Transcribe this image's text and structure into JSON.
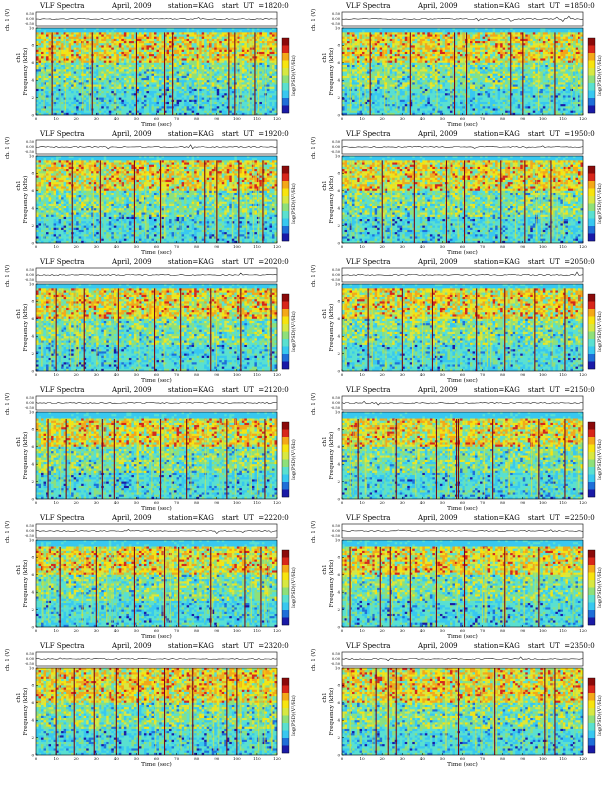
{
  "chart_data": [
    {
      "type": "heatmap",
      "title": "VLF Spectra",
      "month": "April, 2009",
      "station": "station=KAG",
      "start": "start  UT  =1820:0",
      "xlabel": "Time  (sec)",
      "ylabel_top": "ch. 1 (V)",
      "ylabel_bottom": "Frequency (kHz)",
      "ylabel_bottom_prefix": "ch1",
      "colorbar_label": "log(PSD)(V²/Hz)",
      "top_ticks": [
        "0.50",
        "0.00",
        "-0.50"
      ],
      "yticks": [
        "0",
        "2",
        "4",
        "6",
        "8",
        "10"
      ],
      "xticks": [
        "0",
        "10",
        "20",
        "30",
        "40",
        "50",
        "60",
        "70",
        "80",
        "90",
        "100",
        "110",
        "120"
      ],
      "xlim": [
        0,
        120
      ],
      "ylim": [
        0,
        10
      ],
      "band_top_khz": 9.5,
      "dark_lines_sec": [
        8,
        28,
        50,
        64,
        68,
        96,
        99,
        109
      ]
    },
    {
      "type": "heatmap",
      "title": "VLF Spectra",
      "month": "April, 2009",
      "station": "station=KAG",
      "start": "start  UT  =1850:0",
      "xlabel": "Time  (sec)",
      "ylabel_top": "ch. 1 (V)",
      "ylabel_bottom": "Frequency (kHz)",
      "ylabel_bottom_prefix": "ch1",
      "colorbar_label": "log(PSD)(V²/Hz)",
      "top_ticks": [
        "0.50",
        "0.00",
        "-0.50"
      ],
      "yticks": [
        "0",
        "2",
        "4",
        "6",
        "8",
        "10"
      ],
      "xticks": [
        "0",
        "10",
        "20",
        "30",
        "40",
        "50",
        "60",
        "70",
        "80",
        "90",
        "100",
        "110",
        "120"
      ],
      "xlim": [
        0,
        120
      ],
      "ylim": [
        0,
        10
      ],
      "band_top_khz": 9.5,
      "dark_lines_sec": [
        14,
        34,
        56,
        62,
        84,
        90,
        106
      ]
    },
    {
      "type": "heatmap",
      "title": "VLF Spectra",
      "month": "April, 2009",
      "station": "station=KAG",
      "start": "start  UT  =1920:0",
      "xlabel": "Time  (sec)",
      "ylabel_top": "ch. 1 (V)",
      "ylabel_bottom": "Frequency (kHz)",
      "ylabel_bottom_prefix": "ch1",
      "colorbar_label": "log(PSD)(V²/Hz)",
      "top_ticks": [
        "0.50",
        "0.00",
        "-0.50"
      ],
      "yticks": [
        "0",
        "2",
        "4",
        "6",
        "8",
        "10"
      ],
      "xticks": [
        "0",
        "10",
        "20",
        "30",
        "40",
        "50",
        "60",
        "70",
        "80",
        "90",
        "100",
        "110",
        "120"
      ],
      "xlim": [
        0,
        120
      ],
      "ylim": [
        0,
        10
      ],
      "band_top_khz": 9.5,
      "dark_lines_sec": [
        18,
        32,
        49,
        62,
        84,
        90,
        101,
        113
      ]
    },
    {
      "type": "heatmap",
      "title": "VLF Spectra",
      "month": "April, 2009",
      "station": "station=KAG",
      "start": "start  UT  =1950:0",
      "xlabel": "Time  (sec)",
      "ylabel_top": "ch. 1 (V)",
      "ylabel_bottom": "Frequency (kHz)",
      "ylabel_bottom_prefix": "ch1",
      "colorbar_label": "log(PSD)(V²/Hz)",
      "top_ticks": [
        "0.50",
        "0.00",
        "-0.50"
      ],
      "yticks": [
        "0",
        "2",
        "4",
        "6",
        "8",
        "10"
      ],
      "xticks": [
        "0",
        "10",
        "20",
        "30",
        "40",
        "50",
        "60",
        "70",
        "80",
        "90",
        "100",
        "110",
        "120"
      ],
      "xlim": [
        0,
        120
      ],
      "ylim": [
        0,
        10
      ],
      "band_top_khz": 9.5,
      "dark_lines_sec": [
        20,
        36,
        52,
        61,
        79,
        91,
        104
      ]
    },
    {
      "type": "heatmap",
      "title": "VLF Spectra",
      "month": "April, 2009",
      "station": "station=KAG",
      "start": "start  UT  =2020:0",
      "xlabel": "Time  (sec)",
      "ylabel_top": "ch. 1 (V)",
      "ylabel_bottom": "Frequency (kHz)",
      "ylabel_bottom_prefix": "ch1",
      "colorbar_label": "log(PSD)(V²/Hz)",
      "top_ticks": [
        "0.50",
        "0.00",
        "-0.50"
      ],
      "yticks": [
        "0",
        "2",
        "4",
        "6",
        "8",
        "10"
      ],
      "xticks": [
        "0",
        "10",
        "20",
        "30",
        "40",
        "50",
        "60",
        "70",
        "80",
        "90",
        "100",
        "110",
        "120"
      ],
      "xlim": [
        0,
        120
      ],
      "ylim": [
        0,
        10
      ],
      "band_top_khz": 9.5,
      "dark_lines_sec": [
        10,
        24,
        41,
        59,
        72,
        87,
        102,
        117
      ]
    },
    {
      "type": "heatmap",
      "title": "VLF Spectra",
      "month": "April, 2009",
      "station": "station=KAG",
      "start": "start  UT  =2050:0",
      "xlabel": "Time  (sec)",
      "ylabel_top": "ch. 1 (V)",
      "ylabel_bottom": "Frequency (kHz)",
      "ylabel_bottom_prefix": "ch1",
      "colorbar_label": "log(PSD)(V²/Hz)",
      "top_ticks": [
        "0.50",
        "0.00",
        "-0.50"
      ],
      "yticks": [
        "0",
        "2",
        "4",
        "6",
        "8",
        "10"
      ],
      "xticks": [
        "0",
        "10",
        "20",
        "30",
        "40",
        "50",
        "60",
        "70",
        "80",
        "90",
        "100",
        "110",
        "120"
      ],
      "xlim": [
        0,
        120
      ],
      "ylim": [
        0,
        10
      ],
      "band_top_khz": 9.5,
      "dark_lines_sec": [
        13,
        30,
        45,
        67,
        81,
        96,
        111
      ]
    },
    {
      "type": "heatmap",
      "title": "VLF Spectra",
      "month": "April, 2009",
      "station": "station=KAG",
      "start": "start  UT  =2120:0",
      "xlabel": "Time  (sec)",
      "ylabel_top": "ch. 1 (V)",
      "ylabel_bottom": "Frequency (kHz)",
      "ylabel_bottom_prefix": "ch1",
      "colorbar_label": "log(PSD)(V²/Hz)",
      "top_ticks": [
        "0.50",
        "0.00",
        "-0.50"
      ],
      "yticks": [
        "0",
        "2",
        "4",
        "6",
        "8",
        "10"
      ],
      "xticks": [
        "0",
        "10",
        "20",
        "30",
        "40",
        "50",
        "60",
        "70",
        "80",
        "90",
        "100",
        "110",
        "120"
      ],
      "xlim": [
        0,
        120
      ],
      "ylim": [
        0,
        10
      ],
      "band_top_khz": 9.2,
      "dark_lines_sec": [
        6,
        15,
        33,
        39,
        62,
        75,
        95,
        114
      ]
    },
    {
      "type": "heatmap",
      "title": "VLF Spectra",
      "month": "April, 2009",
      "station": "station=KAG",
      "start": "start  UT  =2150:0",
      "xlabel": "Time  (sec)",
      "ylabel_top": "ch. 1 (V)",
      "ylabel_bottom": "Frequency (kHz)",
      "ylabel_bottom_prefix": "ch1",
      "colorbar_label": "log(PSD)(V²/Hz)",
      "top_ticks": [
        "0.50",
        "0.00",
        "-0.50"
      ],
      "yticks": [
        "0",
        "2",
        "4",
        "6",
        "8",
        "10"
      ],
      "xticks": [
        "0",
        "10",
        "20",
        "30",
        "40",
        "50",
        "60",
        "70",
        "80",
        "90",
        "100",
        "110",
        "120"
      ],
      "xlim": [
        0,
        120
      ],
      "ylim": [
        0,
        10
      ],
      "band_top_khz": 9.2,
      "dark_lines_sec": [
        8,
        27,
        47,
        57,
        58,
        75,
        98,
        111
      ]
    },
    {
      "type": "heatmap",
      "title": "VLF Spectra",
      "month": "April, 2009",
      "station": "station=KAG",
      "start": "start  UT  =2220:0",
      "xlabel": "Time  (sec)",
      "ylabel_top": "ch. 1 (V)",
      "ylabel_bottom": "Frequency (kHz)",
      "ylabel_bottom_prefix": "ch1",
      "colorbar_label": "log(PSD)(V²/Hz)",
      "top_ticks": [
        "0.50",
        "0.00",
        "-0.50"
      ],
      "yticks": [
        "0",
        "2",
        "4",
        "6",
        "8",
        "10"
      ],
      "xticks": [
        "0",
        "10",
        "20",
        "30",
        "40",
        "50",
        "60",
        "70",
        "80",
        "90",
        "100",
        "110",
        "120"
      ],
      "xlim": [
        0,
        120
      ],
      "ylim": [
        0,
        10
      ],
      "band_top_khz": 9.2,
      "dark_lines_sec": [
        12,
        30,
        49,
        64,
        71,
        87,
        104,
        112
      ]
    },
    {
      "type": "heatmap",
      "title": "VLF Spectra",
      "month": "April, 2009",
      "station": "station=KAG",
      "start": "start  UT  =2250:0",
      "xlabel": "Time  (sec)",
      "ylabel_top": "ch. 1 (V)",
      "ylabel_bottom": "Frequency (kHz)",
      "ylabel_bottom_prefix": "ch1",
      "colorbar_label": "log(PSD)(V²/Hz)",
      "top_ticks": [
        "0.50",
        "0.00",
        "-0.50"
      ],
      "yticks": [
        "0",
        "2",
        "4",
        "6",
        "8",
        "10"
      ],
      "xticks": [
        "0",
        "10",
        "20",
        "30",
        "40",
        "50",
        "60",
        "70",
        "80",
        "90",
        "100",
        "110",
        "120"
      ],
      "xlim": [
        0,
        120
      ],
      "ylim": [
        0,
        10
      ],
      "band_top_khz": 9.2,
      "dark_lines_sec": [
        4,
        19,
        24,
        34,
        47,
        61,
        81,
        98
      ]
    },
    {
      "type": "heatmap",
      "title": "VLF Spectra",
      "month": "April, 2009",
      "station": "station=KAG",
      "start": "start  UT  =2320:0",
      "xlabel": "Time  (sec)",
      "ylabel_top": "ch. 1 (V)",
      "ylabel_bottom": "Frequency (kHz)",
      "ylabel_bottom_prefix": "ch1",
      "colorbar_label": "log(PSD)(V²/Hz)",
      "top_ticks": [
        "0.50",
        "0.00",
        "-0.50"
      ],
      "yticks": [
        "0",
        "2",
        "4",
        "6",
        "8",
        "10"
      ],
      "xticks": [
        "0",
        "10",
        "20",
        "30",
        "40",
        "50",
        "60",
        "70",
        "80",
        "90",
        "100",
        "110",
        "120"
      ],
      "xlim": [
        0,
        120
      ],
      "ylim": [
        0,
        10
      ],
      "band_top_khz": 10.0,
      "dark_lines_sec": [
        10,
        19,
        29,
        40,
        51,
        64,
        78,
        95,
        100
      ]
    },
    {
      "type": "heatmap",
      "title": "VLF Spectra",
      "month": "April, 2009",
      "station": "station=KAG",
      "start": "start  UT  =2350:0",
      "xlabel": "Time  (sec)",
      "ylabel_top": "ch. 1 (V)",
      "ylabel_bottom": "Frequency (kHz)",
      "ylabel_bottom_prefix": "ch1",
      "colorbar_label": "log(PSD)(V²/Hz)",
      "top_ticks": [
        "0.50",
        "0.00",
        "-0.50"
      ],
      "yticks": [
        "0",
        "2",
        "4",
        "6",
        "8",
        "10"
      ],
      "xticks": [
        "0",
        "10",
        "20",
        "30",
        "40",
        "50",
        "60",
        "70",
        "80",
        "90",
        "100",
        "110",
        "120"
      ],
      "xlim": [
        0,
        120
      ],
      "ylim": [
        0,
        10
      ],
      "band_top_khz": 10.0,
      "dark_lines_sec": [
        17,
        23,
        27,
        58,
        76,
        101,
        106
      ]
    }
  ],
  "colors": {
    "spectrum_scale": [
      "#1a1aa6",
      "#1f6fd8",
      "#38c8f0",
      "#5ae0d0",
      "#8ee07a",
      "#d8e842",
      "#f7e40f",
      "#f4a818",
      "#d8261a",
      "#8b0a0a"
    ],
    "background_band": "#3fd6f2",
    "dark_line": "#7a0a14"
  }
}
